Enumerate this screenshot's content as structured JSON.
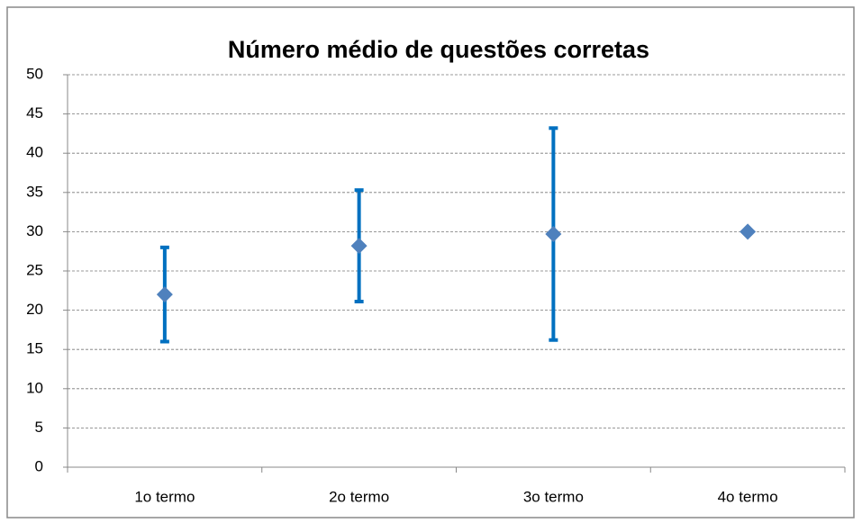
{
  "chart_data": {
    "type": "errorbar",
    "title": "Número médio  de questões corretas",
    "categories": [
      "1o termo",
      "2o termo",
      "3o termo",
      "4o termo"
    ],
    "values": [
      22,
      28.2,
      29.7,
      30
    ],
    "errors": [
      6,
      7.1,
      13.5,
      null
    ],
    "color": "#4f81bd",
    "error_color": "#0070c0",
    "ylim": [
      0,
      50
    ],
    "yticks": [
      0,
      5,
      10,
      15,
      20,
      25,
      30,
      35,
      40,
      45,
      50
    ],
    "grid": true
  }
}
